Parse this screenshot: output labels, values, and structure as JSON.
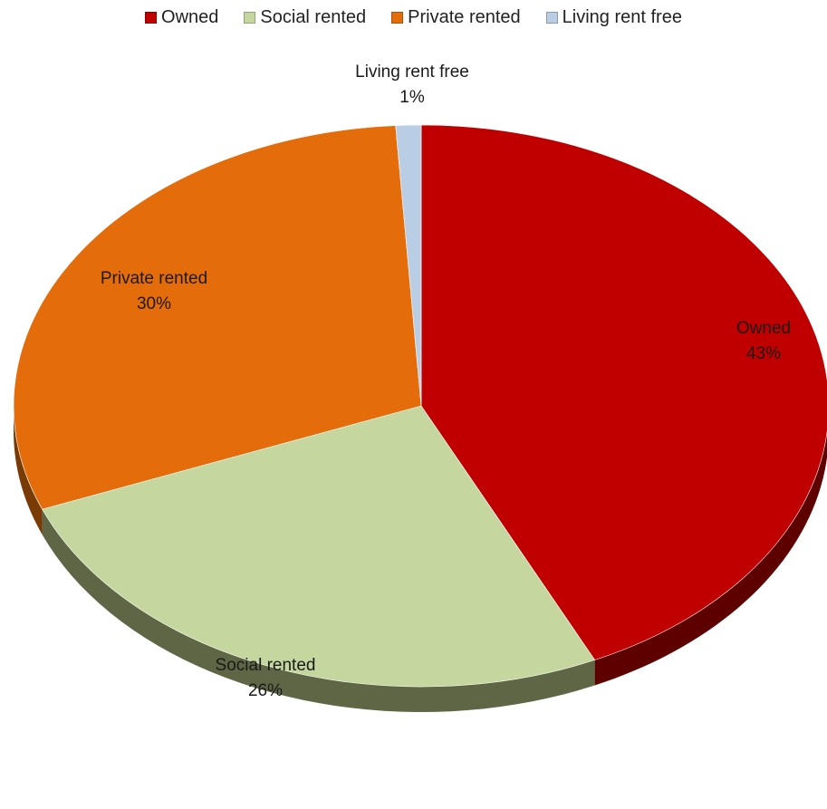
{
  "chart_data": {
    "type": "pie",
    "title": "",
    "categories": [
      "Owned",
      "Social rented",
      "Private rented",
      "Living rent free"
    ],
    "values": [
      43,
      26,
      30,
      1
    ],
    "labels": [
      "43%",
      "26%",
      "30%",
      "1%"
    ],
    "colors": [
      "#C00000",
      "#C5D79E",
      "#E46C0A",
      "#B9CDE5"
    ],
    "side_colors": [
      "#5E0000",
      "#5E6645",
      "#7A3A05",
      "#6C7A8C"
    ],
    "legend": {
      "position": "top",
      "entries": [
        "Owned",
        "Social rented",
        "Private rented",
        "Living rent free"
      ]
    },
    "style": "3d"
  }
}
